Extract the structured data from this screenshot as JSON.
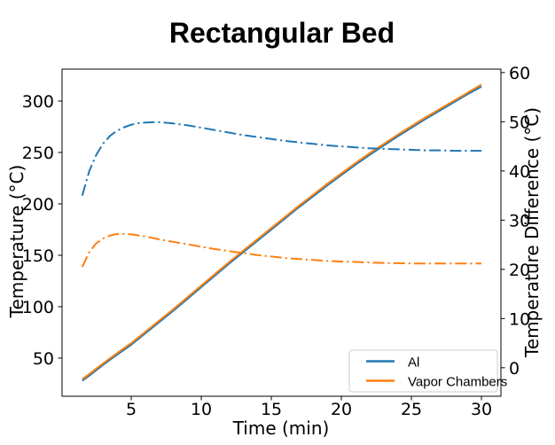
{
  "title": "Rectangular Bed",
  "chart_data": {
    "type": "line",
    "title": "Rectangular Bed",
    "xlabel": "Time (min)",
    "ylabel_left": "Temperature (°C)",
    "ylabel_right": "Temperature Difference (°C)",
    "xlim": [
      0.06,
      31.39
    ],
    "ylim_left": [
      12.9,
      331.0
    ],
    "ylim_right": [
      -5.8,
      60.7
    ],
    "x_ticks": [
      5,
      10,
      15,
      20,
      25,
      30
    ],
    "y_ticks_left": [
      50,
      100,
      150,
      200,
      250,
      300
    ],
    "y_ticks_right": [
      0,
      10,
      20,
      30,
      40,
      50,
      60
    ],
    "grid": false,
    "legend_position": "lower right inside plot",
    "legend": [
      "Al",
      "Vapor Chambers"
    ],
    "colors": {
      "al": "#1f77b4",
      "vapor_chambers": "#ff7f0e"
    },
    "series": [
      {
        "name": "Al temperature",
        "axis": "left",
        "style": "solid",
        "color": "#1f77b4",
        "points": [
          [
            1.5,
            28
          ],
          [
            2,
            33
          ],
          [
            3,
            43.5
          ],
          [
            4,
            53.5
          ],
          [
            5,
            63
          ],
          [
            6,
            74
          ],
          [
            7,
            85
          ],
          [
            8,
            96
          ],
          [
            9,
            107.5
          ],
          [
            10,
            119
          ],
          [
            11,
            130.5
          ],
          [
            12,
            142
          ],
          [
            13,
            153
          ],
          [
            14,
            164
          ],
          [
            15,
            175
          ],
          [
            16,
            186
          ],
          [
            17,
            197
          ],
          [
            18,
            207.5
          ],
          [
            19,
            218
          ],
          [
            20,
            228
          ],
          [
            21,
            238
          ],
          [
            22,
            247.5
          ],
          [
            23,
            256.5
          ],
          [
            24,
            265.5
          ],
          [
            25,
            274
          ],
          [
            26,
            282.5
          ],
          [
            27,
            290.5
          ],
          [
            28,
            298.5
          ],
          [
            29,
            306.5
          ],
          [
            30,
            314
          ]
        ]
      },
      {
        "name": "Vapor Chambers temperature",
        "axis": "left",
        "style": "solid",
        "color": "#ff7f0e",
        "points": [
          [
            1.5,
            29.5
          ],
          [
            2,
            34.5
          ],
          [
            3,
            45
          ],
          [
            4,
            55
          ],
          [
            5,
            64.5
          ],
          [
            6,
            75.5
          ],
          [
            7,
            86.5
          ],
          [
            8,
            97.5
          ],
          [
            9,
            109
          ],
          [
            10,
            120.5
          ],
          [
            11,
            132
          ],
          [
            12,
            143.5
          ],
          [
            13,
            154.5
          ],
          [
            14,
            165.5
          ],
          [
            15,
            176.5
          ],
          [
            16,
            187.5
          ],
          [
            17,
            198.5
          ],
          [
            18,
            209
          ],
          [
            19,
            219.5
          ],
          [
            20,
            229.5
          ],
          [
            21,
            239.5
          ],
          [
            22,
            249
          ],
          [
            23,
            258
          ],
          [
            24,
            267
          ],
          [
            25,
            275.5
          ],
          [
            26,
            284
          ],
          [
            27,
            292
          ],
          [
            28,
            300
          ],
          [
            29,
            308
          ],
          [
            30,
            316
          ]
        ]
      },
      {
        "name": "Al temperature difference",
        "axis": "right",
        "style": "dashdot",
        "color": "#1f77b4",
        "points": [
          [
            1.5,
            35
          ],
          [
            2,
            40
          ],
          [
            2.5,
            43.3
          ],
          [
            3,
            45.6
          ],
          [
            3.5,
            47.2
          ],
          [
            4,
            48.2
          ],
          [
            4.5,
            48.9
          ],
          [
            5,
            49.4
          ],
          [
            5.5,
            49.7
          ],
          [
            6,
            49.85
          ],
          [
            6.5,
            49.9
          ],
          [
            7,
            49.9
          ],
          [
            7.5,
            49.8
          ],
          [
            8,
            49.65
          ],
          [
            9,
            49.3
          ],
          [
            10,
            48.8
          ],
          [
            11,
            48.3
          ],
          [
            12,
            47.8
          ],
          [
            13,
            47.3
          ],
          [
            14,
            46.9
          ],
          [
            15,
            46.5
          ],
          [
            16,
            46.1
          ],
          [
            17,
            45.8
          ],
          [
            18,
            45.5
          ],
          [
            19,
            45.2
          ],
          [
            20,
            45.0
          ],
          [
            21,
            44.8
          ],
          [
            22,
            44.6
          ],
          [
            23,
            44.5
          ],
          [
            24,
            44.4
          ],
          [
            25,
            44.3
          ],
          [
            26,
            44.2
          ],
          [
            27,
            44.2
          ],
          [
            28,
            44.1
          ],
          [
            29,
            44.1
          ],
          [
            30,
            44.1
          ]
        ]
      },
      {
        "name": "Vapor Chambers temperature difference",
        "axis": "right",
        "style": "dashdot",
        "color": "#ff7f0e",
        "points": [
          [
            1.5,
            20.5
          ],
          [
            2,
            23.5
          ],
          [
            2.5,
            25.3
          ],
          [
            3,
            26.3
          ],
          [
            3.5,
            26.9
          ],
          [
            4,
            27.2
          ],
          [
            4.5,
            27.2
          ],
          [
            5,
            27.1
          ],
          [
            6,
            26.7
          ],
          [
            7,
            26.1
          ],
          [
            8,
            25.6
          ],
          [
            9,
            25.1
          ],
          [
            10,
            24.6
          ],
          [
            11,
            24.1
          ],
          [
            12,
            23.7
          ],
          [
            13,
            23.3
          ],
          [
            14,
            22.9
          ],
          [
            15,
            22.6
          ],
          [
            16,
            22.3
          ],
          [
            17,
            22.1
          ],
          [
            18,
            21.9
          ],
          [
            19,
            21.7
          ],
          [
            20,
            21.6
          ],
          [
            21,
            21.5
          ],
          [
            22,
            21.4
          ],
          [
            23,
            21.3
          ],
          [
            24,
            21.25
          ],
          [
            25,
            21.2
          ],
          [
            26,
            21.2
          ],
          [
            27,
            21.2
          ],
          [
            28,
            21.2
          ],
          [
            29,
            21.2
          ],
          [
            30,
            21.2
          ]
        ]
      }
    ]
  }
}
